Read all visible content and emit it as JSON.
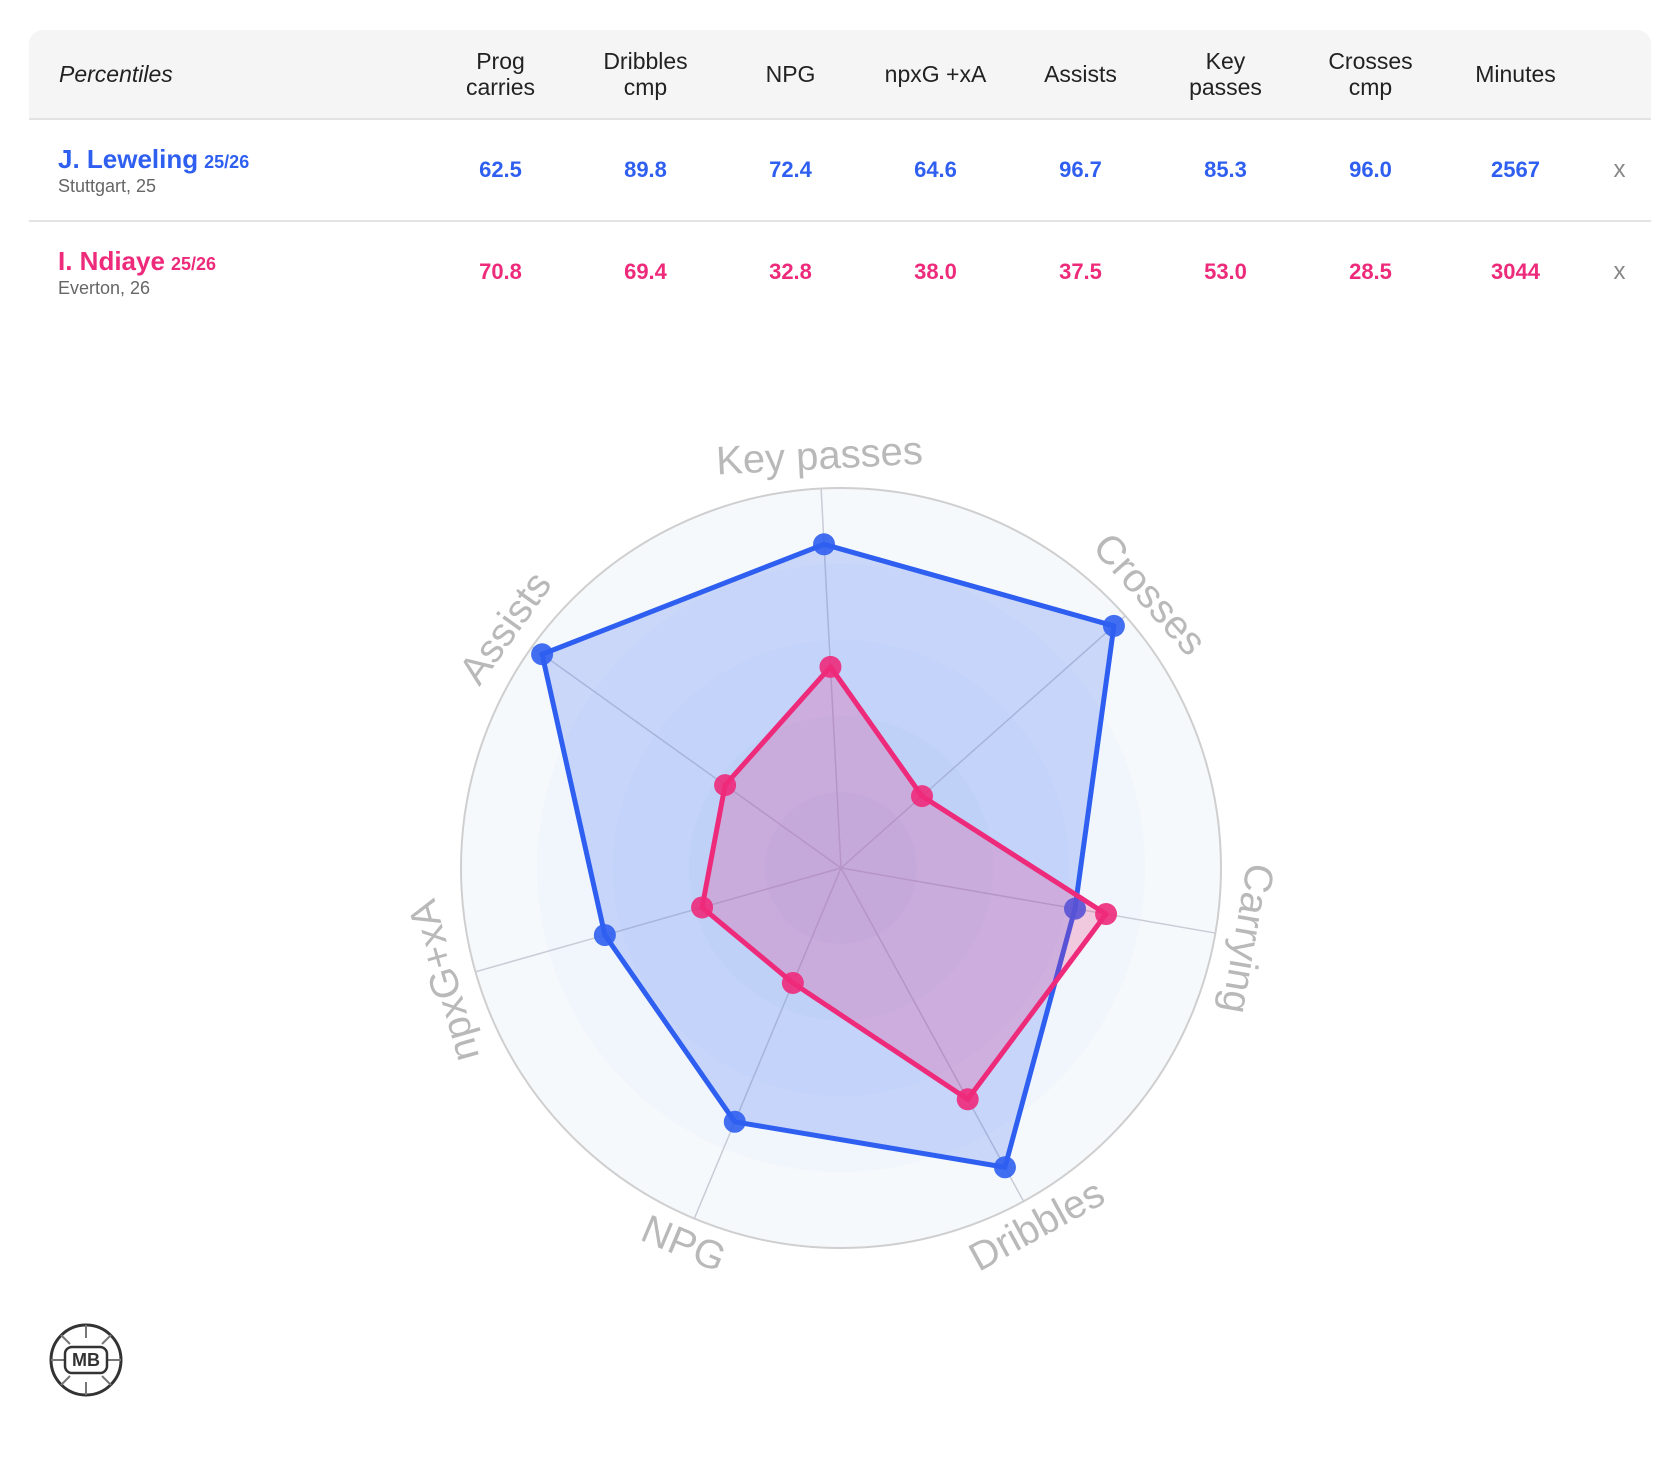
{
  "table": {
    "title": "Percentiles",
    "columns": [
      [
        "Prog",
        "carries"
      ],
      [
        "Dribbles",
        "cmp"
      ],
      [
        "NPG"
      ],
      [
        "npxG +xA"
      ],
      [
        "Assists"
      ],
      [
        "Key",
        "passes"
      ],
      [
        "Crosses",
        "cmp"
      ],
      [
        "Minutes"
      ]
    ],
    "rows": [
      {
        "name": "J. Leweling",
        "season": "25/26",
        "info": "Stuttgart, 25",
        "color": "#2f5ff0",
        "cells": [
          "62.5",
          "89.8",
          "72.4",
          "64.6",
          "96.7",
          "85.3",
          "96.0",
          "2567"
        ],
        "remove": "x"
      },
      {
        "name": "I. Ndiaye",
        "season": "25/26",
        "info": "Everton, 26",
        "color": "#ee2a7b",
        "cells": [
          "70.8",
          "69.4",
          "32.8",
          "38.0",
          "37.5",
          "53.0",
          "28.5",
          "3044"
        ],
        "remove": "x"
      }
    ]
  },
  "chart_data": {
    "type": "radar",
    "axes": [
      "Key passes",
      "Crosses",
      "Carrying",
      "Dribbles",
      "NPG",
      "npxG+xA",
      "Assists"
    ],
    "series": [
      {
        "color": "#2f5ff0",
        "values": [
          85.3,
          96.0,
          62.5,
          89.8,
          72.4,
          64.6,
          96.7
        ]
      },
      {
        "color": "#ee2a7b",
        "values": [
          53.0,
          28.5,
          70.8,
          69.4,
          32.8,
          38.0,
          37.5
        ]
      }
    ],
    "rlim": [
      0,
      100
    ],
    "rticks": [
      20,
      40,
      60,
      80,
      100
    ]
  },
  "logo": "MB"
}
